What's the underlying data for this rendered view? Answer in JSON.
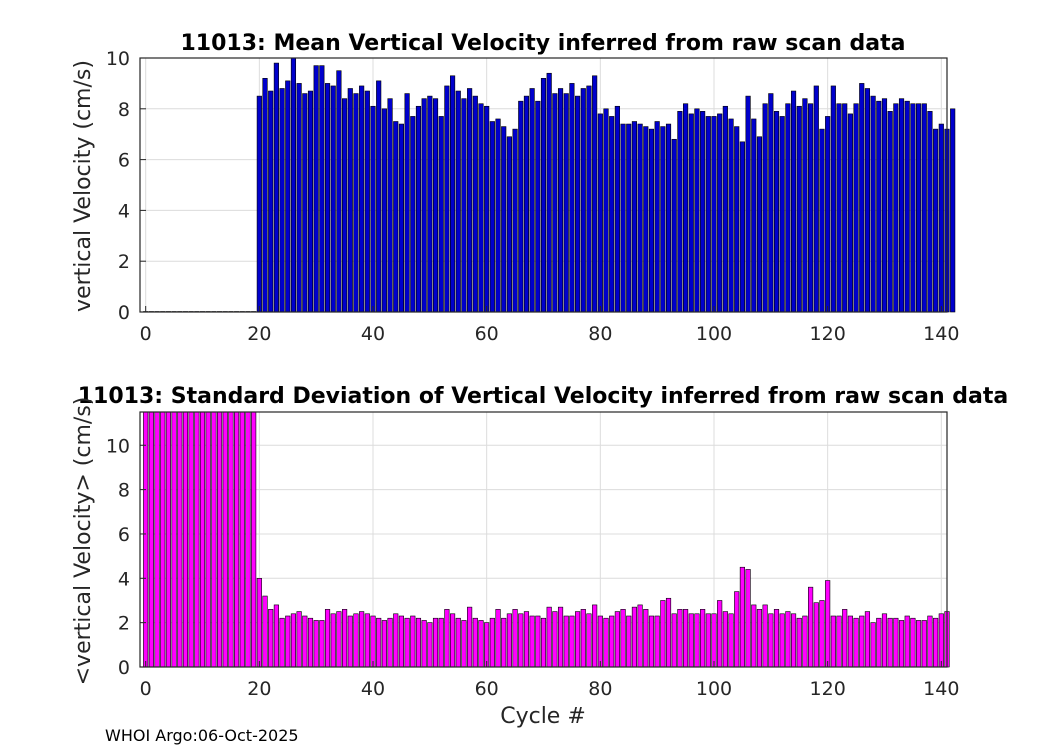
{
  "footer": "WHOI Argo:06-Oct-2025",
  "chart_data": [
    {
      "type": "bar",
      "title": "11013: Mean Vertical Velocity inferred from raw scan data",
      "xlabel": "",
      "ylabel": "vertical Velocity (cm/s)",
      "xlim": [
        -1,
        141
      ],
      "ylim": [
        0,
        10
      ],
      "xticks": [
        0,
        20,
        40,
        60,
        80,
        100,
        120,
        140
      ],
      "yticks": [
        0,
        2,
        4,
        6,
        8,
        10
      ],
      "grid": true,
      "bar_color": "#0000cc",
      "x_start": 0,
      "values": [
        0.02,
        0.02,
        0.02,
        0.02,
        0.02,
        0.02,
        0.02,
        0.02,
        0.02,
        0.02,
        0.02,
        0.02,
        0.02,
        0.02,
        0.02,
        0.02,
        0.02,
        0.02,
        0.02,
        0.02,
        8.5,
        9.2,
        8.7,
        9.8,
        8.8,
        9.1,
        10.0,
        9.0,
        8.6,
        8.7,
        9.7,
        9.7,
        9.0,
        8.9,
        9.5,
        8.4,
        8.8,
        8.6,
        8.9,
        8.7,
        8.1,
        9.1,
        8.0,
        8.4,
        7.5,
        7.4,
        8.6,
        7.7,
        8.1,
        8.4,
        8.5,
        8.4,
        7.7,
        8.9,
        9.3,
        8.7,
        8.4,
        8.8,
        8.5,
        8.2,
        8.1,
        7.5,
        7.6,
        7.3,
        6.9,
        7.2,
        8.3,
        8.5,
        8.8,
        8.3,
        9.2,
        9.4,
        8.6,
        8.8,
        8.6,
        9.0,
        8.5,
        8.8,
        8.9,
        9.3,
        7.8,
        8.0,
        7.7,
        8.1,
        7.4,
        7.4,
        7.5,
        7.4,
        7.3,
        7.2,
        7.5,
        7.3,
        7.4,
        6.8,
        7.9,
        8.2,
        7.8,
        8.0,
        7.9,
        7.7,
        7.7,
        7.8,
        8.1,
        7.6,
        7.3,
        6.7,
        8.5,
        7.6,
        6.9,
        8.2,
        8.6,
        7.9,
        7.7,
        8.2,
        8.7,
        8.1,
        8.4,
        8.2,
        8.9,
        7.2,
        7.7,
        8.9,
        8.2,
        8.2,
        7.8,
        8.2,
        9.0,
        8.8,
        8.5,
        8.3,
        8.4,
        7.9,
        8.2,
        8.4,
        8.3,
        8.2,
        8.2,
        8.2,
        7.9,
        7.2,
        7.4,
        7.2,
        8.0
      ]
    },
    {
      "type": "bar",
      "title": "11013: Standard Deviation of Vertical Velocity inferred from raw scan data",
      "xlabel": "Cycle #",
      "ylabel": "<vertical Velocity> (cm/s)",
      "xlim": [
        -1,
        141
      ],
      "ylim": [
        0,
        11.5
      ],
      "xticks": [
        0,
        20,
        40,
        60,
        80,
        100,
        120,
        140
      ],
      "yticks": [
        0,
        2,
        4,
        6,
        8,
        10
      ],
      "grid": true,
      "bar_color": "#ff00ff",
      "x_start": 0,
      "values": [
        12,
        12,
        12,
        12,
        12,
        12,
        12,
        12,
        12,
        12,
        12,
        12,
        12,
        12,
        12,
        12,
        12,
        12,
        12,
        12,
        4.0,
        3.2,
        2.6,
        2.8,
        2.2,
        2.3,
        2.4,
        2.5,
        2.3,
        2.2,
        2.1,
        2.1,
        2.6,
        2.4,
        2.5,
        2.6,
        2.3,
        2.4,
        2.5,
        2.4,
        2.3,
        2.2,
        2.1,
        2.2,
        2.4,
        2.3,
        2.2,
        2.3,
        2.2,
        2.1,
        2.0,
        2.2,
        2.2,
        2.6,
        2.4,
        2.2,
        2.1,
        2.7,
        2.2,
        2.1,
        2.0,
        2.2,
        2.6,
        2.2,
        2.4,
        2.6,
        2.4,
        2.5,
        2.3,
        2.3,
        2.2,
        2.7,
        2.5,
        2.7,
        2.3,
        2.3,
        2.5,
        2.6,
        2.4,
        2.8,
        2.3,
        2.2,
        2.3,
        2.5,
        2.6,
        2.3,
        2.7,
        2.8,
        2.6,
        2.3,
        2.3,
        3.0,
        3.1,
        2.4,
        2.6,
        2.6,
        2.4,
        2.4,
        2.6,
        2.4,
        2.4,
        3.0,
        2.5,
        2.4,
        3.4,
        4.5,
        4.4,
        2.8,
        2.6,
        2.8,
        2.4,
        2.6,
        2.4,
        2.5,
        2.4,
        2.2,
        2.3,
        3.6,
        2.9,
        3.0,
        3.9,
        2.3,
        2.3,
        2.6,
        2.3,
        2.2,
        2.3,
        2.5,
        2.0,
        2.2,
        2.4,
        2.2,
        2.2,
        2.1,
        2.3,
        2.2,
        2.1,
        2.1,
        2.3,
        2.2,
        2.4,
        2.5
      ]
    }
  ]
}
